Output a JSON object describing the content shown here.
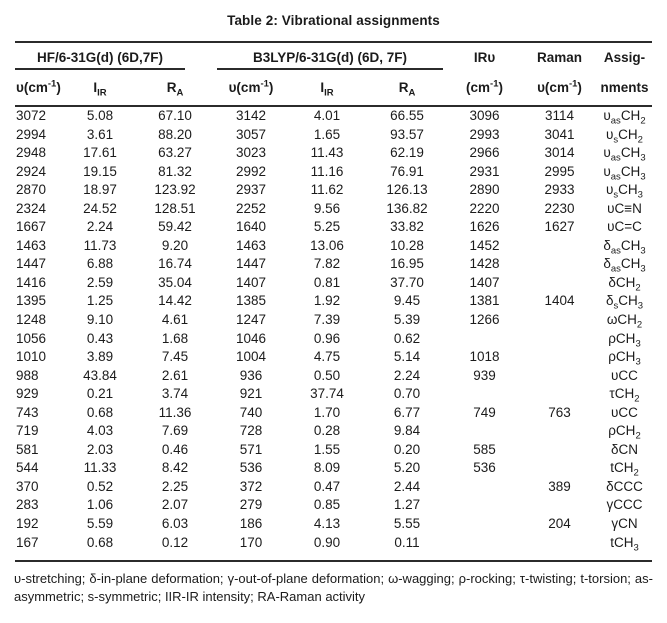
{
  "title": "Table 2: Vibrational assignments",
  "table": {
    "groups": [
      {
        "label": "HF/6-31G(d) (6D,7F)"
      },
      {
        "label": "B3LYP/6-31G(d) (6D, 7F)"
      }
    ],
    "sub_columns": [
      "υ(cm{-1})",
      "I[IR]",
      "R[A]",
      "υ(cm{-1})",
      "I[IR]",
      "R[A]"
    ],
    "tail_columns": [
      {
        "line1": "IRυ",
        "line2": "(cm{-1})"
      },
      {
        "line1": "Raman",
        "line2": "υ(cm{-1})"
      },
      {
        "line1": "Assig-",
        "line2": "nments"
      }
    ],
    "rows": [
      [
        "3072",
        "5.08",
        "67.10",
        "3142",
        "4.01",
        "66.55",
        "3096",
        "3114",
        "υ[as]CH[2]"
      ],
      [
        "2994",
        "3.61",
        "88.20",
        "3057",
        "1.65",
        "93.57",
        "2993",
        "3041",
        "υ[s]CH[2]"
      ],
      [
        "2948",
        "17.61",
        "63.27",
        "3023",
        "11.43",
        "62.19",
        "2966",
        "3014",
        "υ[as]CH[3]"
      ],
      [
        "2924",
        "19.15",
        "81.32",
        "2992",
        "11.16",
        "76.91",
        "2931",
        "2995",
        "υ[as]CH[3]"
      ],
      [
        "2870",
        "18.97",
        "123.92",
        "2937",
        "11.62",
        "126.13",
        "2890",
        "2933",
        "υ[s]CH[3]"
      ],
      [
        "2324",
        "24.52",
        "128.51",
        "2252",
        "9.56",
        "136.82",
        "2220",
        "2230",
        "υC≡N"
      ],
      [
        "1667",
        "2.24",
        "59.42",
        "1640",
        "5.25",
        "33.82",
        "1626",
        "1627",
        "υC=C"
      ],
      [
        "1463",
        "11.73",
        "9.20",
        "1463",
        "13.06",
        "10.28",
        "1452",
        "",
        "δ[as]CH[3]"
      ],
      [
        "1447",
        "6.88",
        "16.74",
        "1447",
        "7.82",
        "16.95",
        "1428",
        "",
        "δ[as]CH[3]"
      ],
      [
        "1416",
        "2.59",
        "35.04",
        "1407",
        "0.81",
        "37.70",
        "1407",
        "",
        "δCH[2]"
      ],
      [
        "1395",
        "1.25",
        "14.42",
        "1385",
        "1.92",
        "9.45",
        "1381",
        "1404",
        "δ[s]CH[3]"
      ],
      [
        "1248",
        "9.10",
        "4.61",
        "1247",
        "7.39",
        "5.39",
        "1266",
        "",
        "ωCH[2]"
      ],
      [
        "1056",
        "0.43",
        "1.68",
        "1046",
        "0.96",
        "0.62",
        "",
        "",
        "ρCH[3]"
      ],
      [
        "1010",
        "3.89",
        "7.45",
        "1004",
        "4.75",
        "5.14",
        "1018",
        "",
        "ρCH[3]"
      ],
      [
        "988",
        "43.84",
        "2.61",
        "936",
        "0.50",
        "2.24",
        "939",
        "",
        "υCC"
      ],
      [
        "929",
        "0.21",
        "3.74",
        "921",
        "37.74",
        "0.70",
        "",
        "",
        "τCH[2]"
      ],
      [
        "743",
        "0.68",
        "11.36",
        "740",
        "1.70",
        "6.77",
        "749",
        "763",
        "υCC"
      ],
      [
        "719",
        "4.03",
        "7.69",
        "728",
        "0.28",
        "9.84",
        "",
        "",
        "ρCH[2]"
      ],
      [
        "581",
        "2.03",
        "0.46",
        "571",
        "1.55",
        "0.20",
        "585",
        "",
        "δCN"
      ],
      [
        "544",
        "11.33",
        "8.42",
        "536",
        "8.09",
        "5.20",
        "536",
        "",
        "tCH[2]"
      ],
      [
        "370",
        "0.52",
        "2.25",
        "372",
        "0.47",
        "2.44",
        "",
        "389",
        "δCCC"
      ],
      [
        "283",
        "1.06",
        "2.07",
        "279",
        "0.85",
        "1.27",
        "",
        "",
        "γCCC"
      ],
      [
        "192",
        "5.59",
        "6.03",
        "186",
        "4.13",
        "5.55",
        "",
        "204",
        "γCN"
      ],
      [
        "167",
        "0.68",
        "0.12",
        "170",
        "0.90",
        "0.11",
        "",
        "",
        "tCH[3]"
      ]
    ]
  },
  "footnote": {
    "line1": "υ-stretching; δ-in-plane deformation; γ-out-of-plane deformation; ω-wagging; ρ-rocking; τ-twisting; t-torsion; as-",
    "line2": "asymmetric; s-symmetric; IIR-IR intensity; RA-Raman activity"
  }
}
